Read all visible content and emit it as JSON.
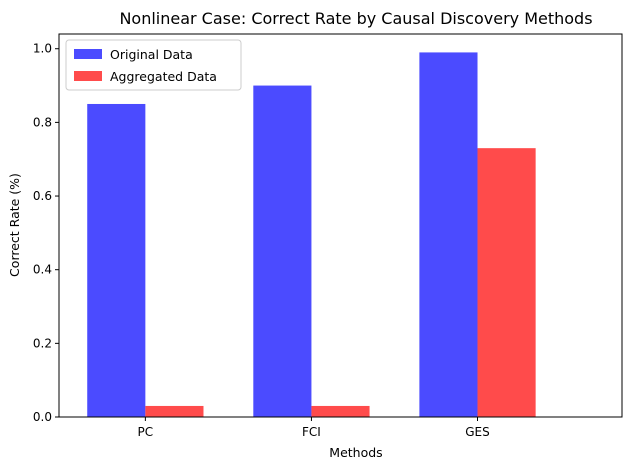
{
  "chart_data": {
    "type": "bar",
    "title": "Nonlinear Case: Correct Rate by Causal Discovery Methods",
    "xlabel": "Methods",
    "ylabel": "Correct Rate (%)",
    "categories": [
      "PC",
      "FCI",
      "GES"
    ],
    "series": [
      {
        "name": "Original Data",
        "values": [
          0.85,
          0.9,
          0.99
        ],
        "color": "#4b4bff"
      },
      {
        "name": "Aggregated Data",
        "values": [
          0.03,
          0.03,
          0.73
        ],
        "color": "#ff4b4b"
      }
    ],
    "ylim": [
      0,
      1.04
    ],
    "yticks": [
      "0.0",
      "0.2",
      "0.4",
      "0.6",
      "0.8",
      "1.0"
    ],
    "grid": false,
    "legend": "top-left"
  }
}
